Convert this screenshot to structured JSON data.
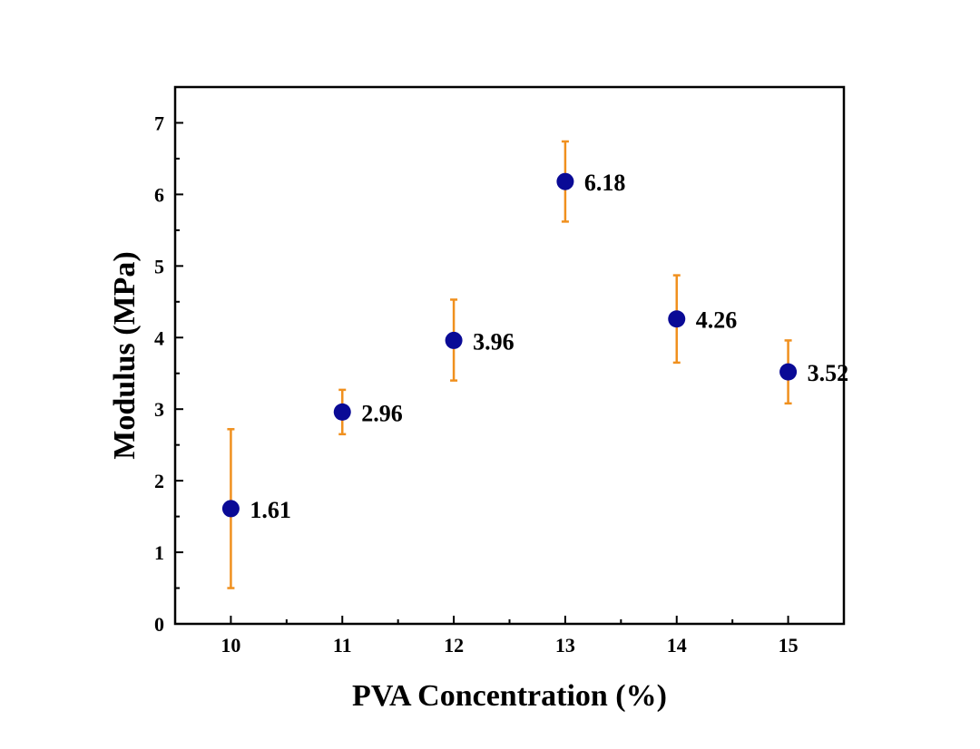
{
  "chart_data": {
    "type": "scatter",
    "xlabel": "PVA Concentration (%)",
    "ylabel": "Modulus (MPa)",
    "xlim": [
      9.5,
      15.5
    ],
    "ylim": [
      0,
      7.5
    ],
    "x_ticks": [
      "10",
      "11",
      "12",
      "13",
      "14",
      "15"
    ],
    "y_ticks": [
      "0",
      "1",
      "2",
      "3",
      "4",
      "5",
      "6",
      "7"
    ],
    "grid": false,
    "legend": "none",
    "marker_color": "#0a0a96",
    "error_bar_color": "#f0901e",
    "points": [
      {
        "x": 10,
        "y": 1.61,
        "err_low": 0.5,
        "err_high": 2.72,
        "label": "1.61"
      },
      {
        "x": 11,
        "y": 2.96,
        "err_low": 2.65,
        "err_high": 3.27,
        "label": "2.96"
      },
      {
        "x": 12,
        "y": 3.96,
        "err_low": 3.4,
        "err_high": 4.53,
        "label": "3.96"
      },
      {
        "x": 13,
        "y": 6.18,
        "err_low": 5.62,
        "err_high": 6.74,
        "label": "6.18"
      },
      {
        "x": 14,
        "y": 4.26,
        "err_low": 3.65,
        "err_high": 4.87,
        "label": "4.26"
      },
      {
        "x": 15,
        "y": 3.52,
        "err_low": 3.08,
        "err_high": 3.96,
        "label": "3.52"
      }
    ]
  }
}
